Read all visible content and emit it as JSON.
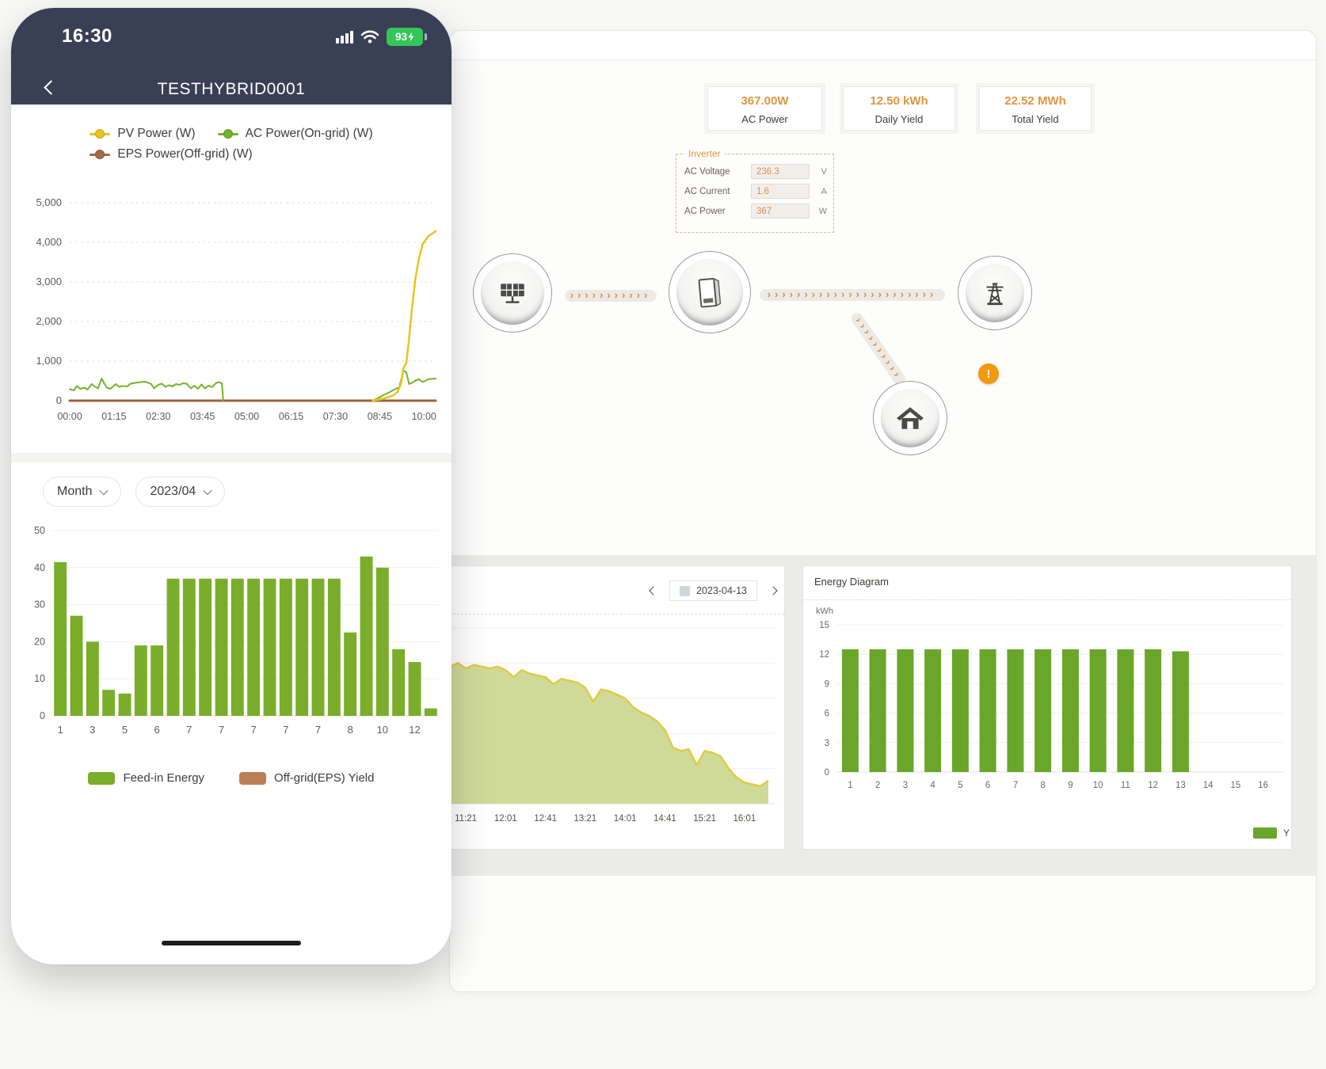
{
  "colors": {
    "pv_yellow": "#e7c51b",
    "ac_green": "#74b32c",
    "eps_brown": "#a06a45",
    "bar_green": "#79ad2a",
    "legend_brown": "#bc7e55",
    "desktop_bar_green": "#6aa62a",
    "accent_orange": "#e0953f",
    "warning_orange": "#f2990f",
    "header_navy": "#394056",
    "battery_green": "#33c658"
  },
  "phone": {
    "statusbar": {
      "time": "16:30",
      "battery_percent": "93"
    },
    "header": {
      "title": "TESTHYBRID0001"
    },
    "power_legend": [
      {
        "label": "PV Power (W)",
        "color": "#e7c51b"
      },
      {
        "label": "AC Power(On-grid) (W)",
        "color": "#74b32c"
      },
      {
        "label": "EPS Power(Off-grid) (W)",
        "color": "#a06a45"
      }
    ],
    "controls": {
      "period": "Month",
      "month": "2023/04"
    },
    "bar_legend": [
      {
        "label": "Feed-in Energy",
        "color": "#79ad2a"
      },
      {
        "label": "Off-grid(EPS) Yield",
        "color": "#bc7e55"
      }
    ]
  },
  "desktop": {
    "stats": [
      {
        "value": "367.00W",
        "label": "AC Power"
      },
      {
        "value": "12.50 kWh",
        "label": "Daily Yield"
      },
      {
        "value": "22.52 MWh",
        "label": "Total Yield"
      }
    ],
    "inverter": {
      "title": "Inverter",
      "rows": [
        {
          "label": "AC Voltage",
          "value": "236.3",
          "unit": "V"
        },
        {
          "label": "AC Current",
          "value": "1.6",
          "unit": "A"
        },
        {
          "label": "AC Power",
          "value": "367",
          "unit": "W"
        }
      ]
    },
    "flow": {
      "warning": "!"
    },
    "day_panel": {
      "date": "2023-04-13"
    },
    "energy_panel": {
      "title": "Energy Diagram",
      "legend_label": "Y"
    }
  },
  "chart_data": [
    {
      "id": "power",
      "type": "line",
      "title": "PV / AC / EPS power curves",
      "xlim": [
        0,
        10.33
      ],
      "ylim": [
        0,
        5000
      ],
      "y_ticks": [
        0,
        1000,
        2000,
        3000,
        4000,
        5000
      ],
      "y_tick_labels": [
        "0",
        "1,000",
        "2,000",
        "3,000",
        "4,000",
        "5,000"
      ],
      "x_tick_pos": [
        0,
        1.25,
        2.5,
        3.75,
        5,
        6.25,
        7.5,
        8.75,
        10
      ],
      "x_tick_labels": [
        "00:00",
        "01:15",
        "02:30",
        "03:45",
        "05:00",
        "06:15",
        "07:30",
        "08:45",
        "10:00"
      ],
      "grid": true,
      "legend_position": "top",
      "series": [
        {
          "name": "EPS Power(Off-grid) (W)",
          "color": "#9c6240",
          "width": 3,
          "points": [
            [
              0,
              0
            ],
            [
              10.33,
              0
            ]
          ]
        },
        {
          "name": "AC Power(On-grid) (W)",
          "color": "#74b32c",
          "width": 2,
          "points": [
            [
              0,
              290
            ],
            [
              0.12,
              260
            ],
            [
              0.2,
              370
            ],
            [
              0.3,
              300
            ],
            [
              0.42,
              330
            ],
            [
              0.5,
              280
            ],
            [
              0.62,
              420
            ],
            [
              0.72,
              350
            ],
            [
              0.8,
              310
            ],
            [
              0.9,
              560
            ],
            [
              0.98,
              430
            ],
            [
              1.05,
              330
            ],
            [
              1.15,
              300
            ],
            [
              1.3,
              420
            ],
            [
              1.4,
              350
            ],
            [
              1.5,
              370
            ],
            [
              1.62,
              360
            ],
            [
              1.72,
              430
            ],
            [
              1.85,
              450
            ],
            [
              2.0,
              470
            ],
            [
              2.1,
              480
            ],
            [
              2.2,
              460
            ],
            [
              2.3,
              420
            ],
            [
              2.38,
              310
            ],
            [
              2.5,
              400
            ],
            [
              2.6,
              430
            ],
            [
              2.7,
              350
            ],
            [
              2.8,
              390
            ],
            [
              2.9,
              360
            ],
            [
              3.0,
              420
            ],
            [
              3.1,
              400
            ],
            [
              3.2,
              440
            ],
            [
              3.3,
              430
            ],
            [
              3.42,
              310
            ],
            [
              3.52,
              380
            ],
            [
              3.62,
              300
            ],
            [
              3.72,
              410
            ],
            [
              3.82,
              310
            ],
            [
              3.92,
              380
            ],
            [
              4.02,
              340
            ],
            [
              4.12,
              440
            ],
            [
              4.22,
              470
            ],
            [
              4.3,
              430
            ],
            [
              4.33,
              0
            ],
            null,
            [
              8.55,
              0
            ],
            [
              8.7,
              60
            ],
            [
              8.85,
              140
            ],
            [
              9.0,
              200
            ],
            [
              9.1,
              250
            ],
            [
              9.2,
              300
            ],
            [
              9.3,
              330
            ],
            [
              9.42,
              760
            ],
            [
              9.5,
              720
            ],
            [
              9.58,
              420
            ],
            [
              9.66,
              450
            ],
            [
              9.76,
              510
            ],
            [
              9.86,
              540
            ],
            [
              9.96,
              470
            ],
            [
              10.12,
              540
            ],
            [
              10.33,
              560
            ]
          ]
        },
        {
          "name": "PV Power (W)",
          "color": "#e7c51b",
          "width": 2.5,
          "points": [
            [
              8.55,
              0
            ],
            [
              8.8,
              40
            ],
            [
              9.0,
              90
            ],
            [
              9.15,
              140
            ],
            [
              9.25,
              220
            ],
            [
              9.35,
              420
            ],
            [
              9.42,
              820
            ],
            [
              9.5,
              950
            ],
            [
              9.56,
              1400
            ],
            [
              9.66,
              2300
            ],
            [
              9.76,
              3100
            ],
            [
              9.86,
              3600
            ],
            [
              9.96,
              3950
            ],
            [
              10.12,
              4150
            ],
            [
              10.33,
              4280
            ]
          ]
        }
      ]
    },
    {
      "id": "month",
      "type": "bar",
      "title": "Monthly feed-in energy 2023/04",
      "series_name": "Feed-in Energy",
      "color": "#79ad2a",
      "values": [
        41.5,
        27,
        20,
        7,
        6,
        19,
        19,
        37,
        37,
        37,
        37,
        37,
        37,
        37,
        37,
        37,
        37,
        37,
        22.5,
        43,
        40,
        18,
        14.5,
        2
      ],
      "tick_labels": [
        "1",
        "3",
        "5",
        "6",
        "7",
        "7",
        "7",
        "7",
        "7",
        "8",
        "10",
        "12"
      ],
      "ylim": [
        0,
        50
      ],
      "y_ticks": [
        0,
        10,
        20,
        30,
        40,
        50
      ],
      "grid": true
    },
    {
      "id": "day",
      "type": "area",
      "title": "Daily power curve 2023-04-13",
      "fill": "#ccd892",
      "stroke": "#ddcb42",
      "ylim": [
        0,
        100
      ],
      "values": [
        78,
        80,
        77,
        79,
        78,
        77,
        78,
        76,
        72,
        76,
        74,
        73,
        72,
        68,
        71,
        70,
        69,
        66,
        58,
        65,
        64,
        62,
        60,
        55,
        52,
        50,
        47,
        42,
        32,
        30,
        31,
        22,
        30,
        29,
        27,
        20,
        15,
        12,
        11,
        10,
        13
      ],
      "x_tick_labels": [
        "11:21",
        "12:01",
        "12:41",
        "13:21",
        "14:01",
        "14:41",
        "15:21",
        "16:01"
      ],
      "x_tick_pos": [
        0.05,
        0.175,
        0.3,
        0.425,
        0.55,
        0.675,
        0.8,
        0.925
      ],
      "grid": true
    },
    {
      "id": "energy",
      "type": "bar",
      "title": "Energy Diagram",
      "ylabel": "kWh",
      "color": "#6aa62a",
      "categories": [
        "1",
        "2",
        "3",
        "4",
        "5",
        "6",
        "7",
        "8",
        "9",
        "10",
        "11",
        "12",
        "13",
        "14",
        "15",
        "16"
      ],
      "values": [
        12.5,
        12.5,
        12.5,
        12.5,
        12.5,
        12.5,
        12.5,
        12.5,
        12.5,
        12.5,
        12.5,
        12.5,
        12.3
      ],
      "ylim": [
        0,
        15
      ],
      "y_ticks": [
        0,
        3,
        6,
        9,
        12,
        15
      ],
      "grid": true
    }
  ]
}
